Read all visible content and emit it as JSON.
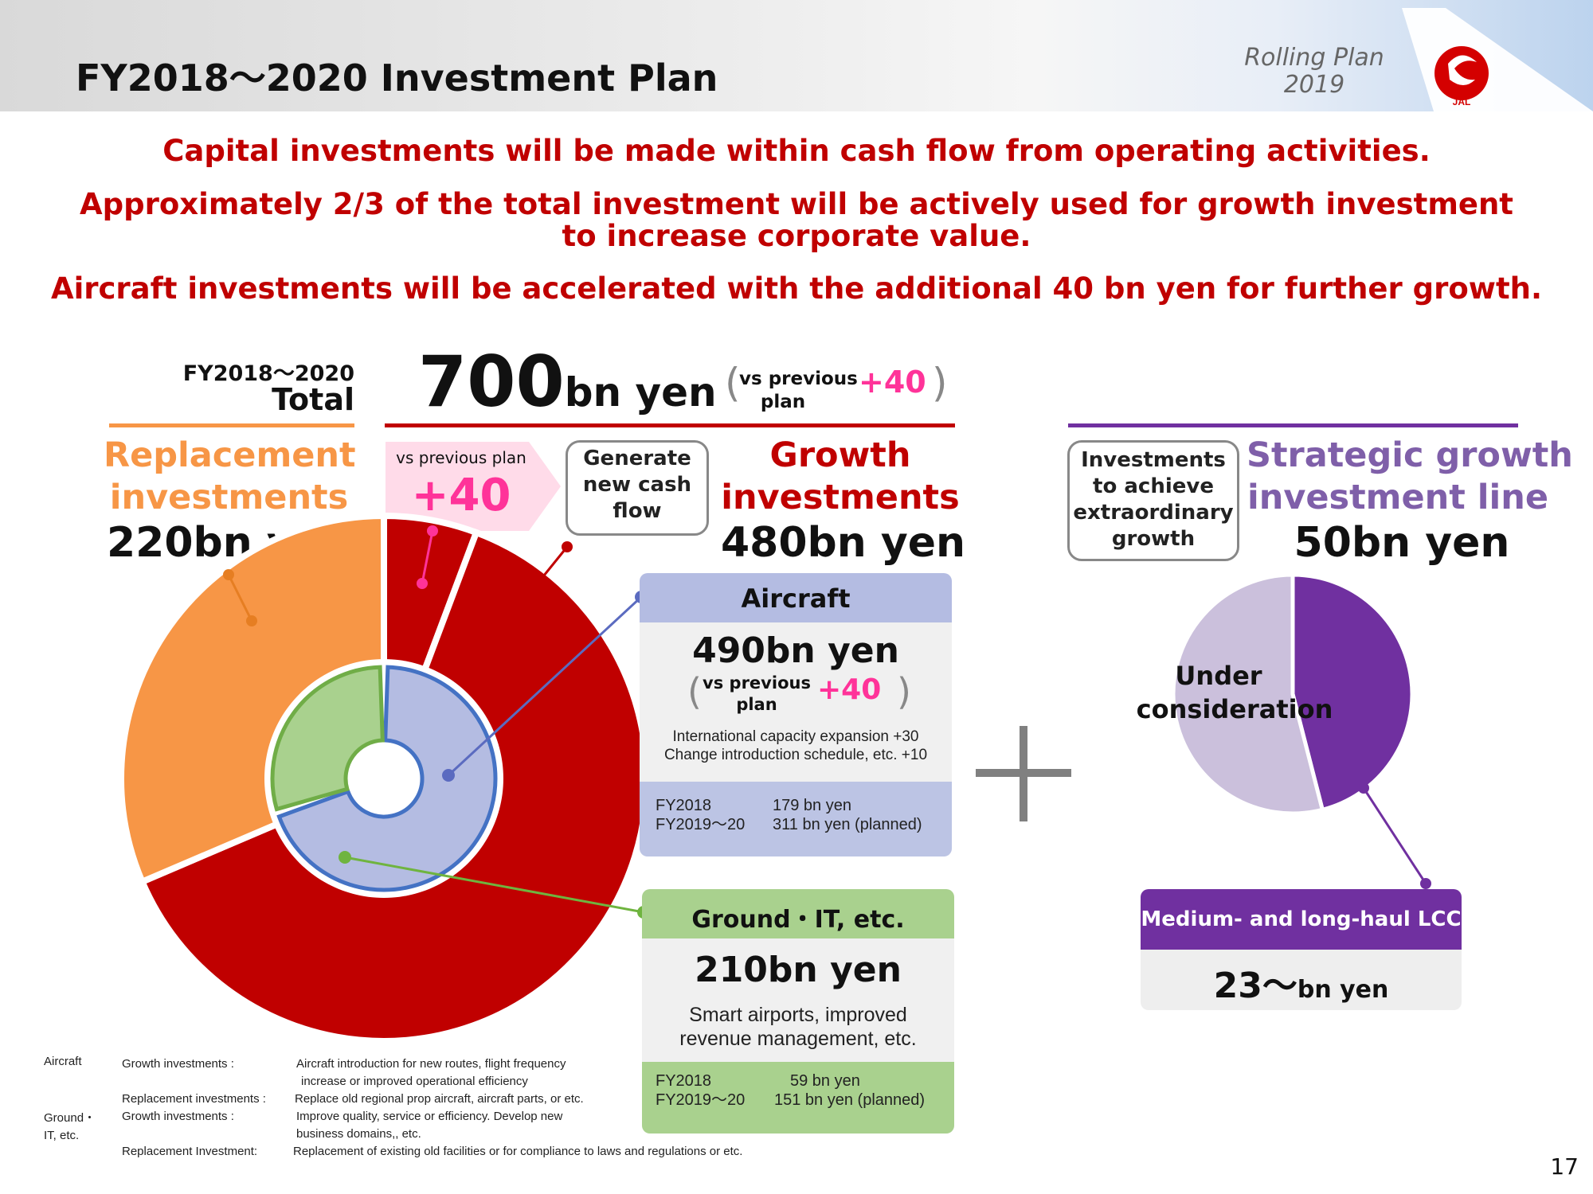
{
  "header": {
    "title": "FY2018～2020 Investment Plan",
    "rolling_plan_line1": "Rolling Plan",
    "rolling_plan_line2": "2019",
    "logo_text": "JAL"
  },
  "messages": {
    "line1": "Capital investments will be made within cash flow from operating activities.",
    "line2a": "Approximately 2/3 of the total investment will be actively used for growth investment",
    "line2b": "to increase corporate value.",
    "line3": "Aircraft investments will be accelerated with the additional 40 bn yen for further growth."
  },
  "total": {
    "period": "FY2018～2020",
    "label": "Total",
    "amount_number": "700",
    "amount_unit": "bn yen",
    "vs_label_1": "vs previous",
    "vs_label_2": "plan",
    "vs_value": "+40",
    "paren_open": "(",
    "paren_close": ")"
  },
  "replacement": {
    "title_line1": "Replacement",
    "title_line2": "investments",
    "amount": "220bn yen"
  },
  "vs_banner": {
    "label": "vs previous plan",
    "value": "+40"
  },
  "cash_flow_box": {
    "line1": "Generate",
    "line2": "new cash",
    "line3": "flow"
  },
  "growth": {
    "title_line1": "Growth",
    "title_line2": "investments",
    "amount": "480bn yen"
  },
  "extraordinary_box": {
    "line1": "Investments",
    "line2": "to achieve",
    "line3": "extraordinary",
    "line4": "growth"
  },
  "strategic": {
    "title_line1": "Strategic growth",
    "title_line2": "investment line",
    "amount": "50bn yen",
    "under_consideration_1": "Under",
    "under_consideration_2": "consideration"
  },
  "aircraft_panel": {
    "title": "Aircraft",
    "amount": "490bn yen",
    "vs_1": "vs previous",
    "vs_2": "plan",
    "vs_value": "+40",
    "detail1": "International capacity expansion +30",
    "detail2": "Change introduction schedule, etc. +10",
    "fy1_label": "FY2018",
    "fy1_value": "179 bn yen",
    "fy2_label": "FY2019～20",
    "fy2_value": "311 bn yen (planned)"
  },
  "ground_panel": {
    "title": "Ground・IT, etc.",
    "amount": "210bn yen",
    "detail1": "Smart airports, improved",
    "detail2": "revenue management, etc.",
    "fy1_label": "FY2018",
    "fy1_value": "59 bn yen",
    "fy2_label": "FY2019～20",
    "fy2_value": "151 bn yen (planned)"
  },
  "lcc_panel": {
    "title": "Medium- and long-haul LCC",
    "amount_number": "23～",
    "amount_unit": "bn yen"
  },
  "plus_sign": "+",
  "legend": {
    "aircraft_head": "Aircraft",
    "aircraft_growth_label": "Growth investments :",
    "aircraft_growth_text1": "Aircraft introduction for new routes, flight frequency",
    "aircraft_growth_text2": "increase or  improved operational  efficiency",
    "aircraft_repl_label": "Replacement investments :",
    "aircraft_repl_text": "Replace old regional prop aircraft, aircraft parts, or etc.",
    "ground_head1": "Ground・",
    "ground_head2": "IT, etc.",
    "ground_growth_label": "Growth investments :",
    "ground_growth_text1": "Improve quality, service or efficiency. Develop new",
    "ground_growth_text2": "business domains,, etc.",
    "ground_repl_label": "Replacement Investment:",
    "ground_repl_text": "Replacement of existing old facilities  or for compliance to laws and regulations or etc."
  },
  "page_number": "17",
  "colors": {
    "red": "#c00000",
    "orange": "#f79646",
    "purple": "#7030a0",
    "lavender": "#b4bce2",
    "green": "#a9d18e",
    "pink": "#ff3399"
  },
  "chart_data": [
    {
      "type": "pie",
      "title": "",
      "slices": [
        {
          "label": "Replacement investments",
          "value": 220
        },
        {
          "label": "Growth investments (vs previous plan)",
          "value": 40
        },
        {
          "label": "Growth investments",
          "value": 440
        }
      ],
      "inner_ring": [
        {
          "label": "Aircraft",
          "value": 490
        },
        {
          "label": "Ground・IT, etc.",
          "value": 210
        }
      ]
    },
    {
      "type": "pie",
      "title": "",
      "slices": [
        {
          "label": "Medium- and long-haul LCC",
          "value": 23
        },
        {
          "label": "Under consideration",
          "value": 27
        }
      ]
    }
  ]
}
